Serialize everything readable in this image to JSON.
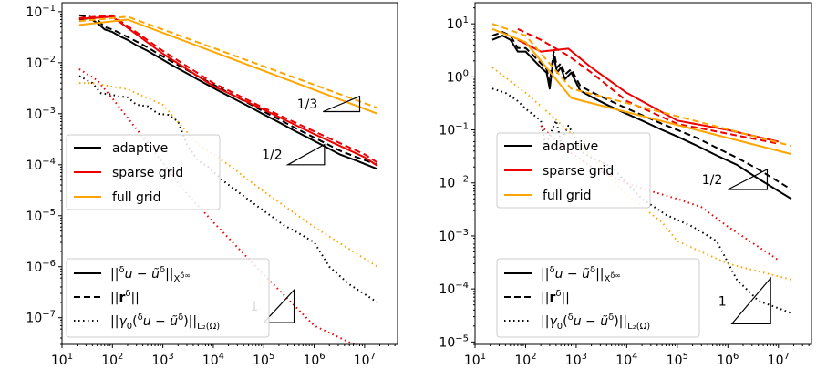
{
  "chart_data": [
    {
      "type": "line",
      "scale": {
        "x": "log",
        "y": "log"
      },
      "xlim": [
        10,
        45000000
      ],
      "ylim": [
        3e-08,
        0.15
      ],
      "x_ticks": [
        {
          "v": 10,
          "b": "10",
          "e": "1"
        },
        {
          "v": 100,
          "b": "10",
          "e": "2"
        },
        {
          "v": 1000,
          "b": "10",
          "e": "3"
        },
        {
          "v": 10000,
          "b": "10",
          "e": "4"
        },
        {
          "v": 100000,
          "b": "10",
          "e": "5"
        },
        {
          "v": 1000000,
          "b": "10",
          "e": "6"
        },
        {
          "v": 10000000,
          "b": "10",
          "e": "7"
        }
      ],
      "y_ticks": [
        {
          "v": 1e-07,
          "b": "10",
          "e": "−7"
        },
        {
          "v": 1e-06,
          "b": "10",
          "e": "−6"
        },
        {
          "v": 1e-05,
          "b": "10",
          "e": "−5"
        },
        {
          "v": 0.0001,
          "b": "10",
          "e": "−4"
        },
        {
          "v": 0.001,
          "b": "10",
          "e": "−3"
        },
        {
          "v": 0.01,
          "b": "10",
          "e": "−2"
        },
        {
          "v": 0.1,
          "b": "10",
          "e": "−1"
        }
      ],
      "series": [
        {
          "name": "adaptive",
          "style": "solid",
          "color": "#000000",
          "x": [
            22,
            35,
            50,
            70,
            100,
            140,
            200,
            300,
            500,
            800,
            1500,
            3000,
            6000,
            12000,
            25000,
            50000,
            100000,
            200000,
            400000,
            800000,
            1600000,
            3200000,
            7000000,
            18000000
          ],
          "y": [
            0.07,
            0.075,
            0.06,
            0.045,
            0.04,
            0.033,
            0.028,
            0.022,
            0.017,
            0.013,
            0.009,
            0.0062,
            0.0042,
            0.0029,
            0.002,
            0.0014,
            0.00097,
            0.00068,
            0.00047,
            0.00033,
            0.00023,
            0.00016,
            0.00012,
            8.2e-05
          ]
        },
        {
          "name": "",
          "style": "dashed",
          "color": "#000000",
          "x": [
            22,
            35,
            50,
            70,
            100,
            140,
            200,
            300,
            500,
            800,
            1500,
            3000,
            6000,
            12000,
            25000,
            50000,
            100000,
            200000,
            400000,
            800000,
            1600000,
            3200000,
            7000000,
            18000000
          ],
          "y": [
            0.085,
            0.08,
            0.07,
            0.05,
            0.045,
            0.038,
            0.032,
            0.026,
            0.02,
            0.015,
            0.0105,
            0.0072,
            0.0049,
            0.0034,
            0.0023,
            0.0016,
            0.0011,
            0.00078,
            0.00054,
            0.00038,
            0.00027,
            0.00019,
            0.00014,
            0.0001
          ]
        },
        {
          "name": "",
          "style": "dotted",
          "color": "#000000",
          "x": [
            22,
            40,
            60,
            90,
            130,
            200,
            300,
            500,
            800,
            1300,
            2000,
            3000,
            5000,
            8000,
            15000,
            30000,
            60000,
            120000,
            250000,
            500000,
            1000000,
            2000000,
            5000000,
            18000000
          ],
          "y": [
            0.0055,
            0.004,
            0.0025,
            0.0024,
            0.0022,
            0.0021,
            0.0015,
            0.0014,
            0.001,
            0.00095,
            0.0007,
            0.00025,
            0.00012,
            9e-05,
            5e-05,
            3e-05,
            1.8e-05,
            1.1e-05,
            6.5e-06,
            4.5e-06,
            3e-06,
            1e-06,
            4.5e-07,
            2e-07
          ]
        },
        {
          "name": "sparse grid",
          "style": "solid",
          "color": "#ee0000",
          "x": [
            22,
            100,
            1000,
            10000,
            100000,
            1000000,
            10000000,
            18000000
          ],
          "y": [
            0.072,
            0.08,
            0.015,
            0.0035,
            0.0012,
            0.0004,
            0.00014,
            9.5e-05
          ]
        },
        {
          "name": "",
          "style": "dashed",
          "color": "#ee0000",
          "x": [
            22,
            100,
            1000,
            10000,
            100000,
            1000000,
            10000000,
            18000000
          ],
          "y": [
            0.075,
            0.085,
            0.017,
            0.004,
            0.0013,
            0.00045,
            0.00016,
            0.00011
          ]
        },
        {
          "name": "",
          "style": "dotted",
          "color": "#ee0000",
          "x": [
            22,
            50,
            100,
            300,
            1000,
            3000,
            10000,
            100000,
            1000000,
            9000000
          ],
          "y": [
            0.0075,
            0.0045,
            0.002,
            0.0005,
            0.00011,
            2.7e-05,
            7.5e-06,
            7e-07,
            7e-08,
            2.5e-08
          ]
        },
        {
          "name": "full grid",
          "style": "solid",
          "color": "#ffa500",
          "x": [
            22,
            200,
            18000000
          ],
          "y": [
            0.055,
            0.07,
            0.001
          ]
        },
        {
          "name": "",
          "style": "dashed",
          "color": "#ffa500",
          "x": [
            22,
            200,
            18000000
          ],
          "y": [
            0.065,
            0.08,
            0.0013
          ]
        },
        {
          "name": "",
          "style": "dotted",
          "color": "#ffa500",
          "x": [
            22,
            40,
            200,
            1000,
            5000,
            20000,
            100000,
            1000000,
            18000000
          ],
          "y": [
            0.004,
            0.004,
            0.003,
            0.0015,
            0.00025,
            0.0001,
            3e-05,
            6e-06,
            1e-06
          ]
        }
      ],
      "legend_methods": {
        "placement": "left",
        "entries": [
          {
            "label": "adaptive",
            "color": "#000000"
          },
          {
            "label": "sparse grid",
            "color": "#ee0000"
          },
          {
            "label": "full grid",
            "color": "#ffa500"
          }
        ]
      },
      "legend_styles": {
        "placement": "lower-left"
      },
      "slopes": [
        {
          "label": "1/3",
          "x": [
            1500000,
            8000000
          ],
          "y_bottom": 0.0011,
          "y_top": 0.0022
        },
        {
          "label": "1/2",
          "x": [
            300000,
            1600000
          ],
          "y_bottom": 0.0001,
          "y_top": 0.00025
        },
        {
          "label": "1",
          "x": [
            100000,
            400000
          ],
          "y_bottom": 8e-08,
          "y_top": 3.5e-07
        }
      ]
    },
    {
      "type": "line",
      "scale": {
        "x": "log",
        "y": "log"
      },
      "xlim": [
        10,
        45000000
      ],
      "ylim": [
        9e-06,
        25
      ],
      "x_ticks": [
        {
          "v": 10,
          "b": "10",
          "e": "1"
        },
        {
          "v": 100,
          "b": "10",
          "e": "2"
        },
        {
          "v": 1000,
          "b": "10",
          "e": "3"
        },
        {
          "v": 10000,
          "b": "10",
          "e": "4"
        },
        {
          "v": 100000,
          "b": "10",
          "e": "5"
        },
        {
          "v": 1000000,
          "b": "10",
          "e": "6"
        },
        {
          "v": 10000000,
          "b": "10",
          "e": "7"
        }
      ],
      "y_ticks": [
        {
          "v": 1e-05,
          "b": "10",
          "e": "−5"
        },
        {
          "v": 0.0001,
          "b": "10",
          "e": "−4"
        },
        {
          "v": 0.001,
          "b": "10",
          "e": "−3"
        },
        {
          "v": 0.01,
          "b": "10",
          "e": "−2"
        },
        {
          "v": 0.1,
          "b": "10",
          "e": "−1"
        },
        {
          "v": 1,
          "b": "10",
          "e": "0"
        },
        {
          "v": 10,
          "b": "10",
          "e": "1"
        }
      ],
      "series": [
        {
          "name": "adaptive",
          "style": "solid",
          "color": "#000000",
          "x": [
            22,
            35,
            50,
            70,
            100,
            150,
            200,
            260,
            300,
            360,
            420,
            500,
            600,
            800,
            1200,
            2000,
            4000,
            8000,
            20000,
            50000,
            100000,
            250000,
            600000,
            1500000,
            4000000,
            18000000
          ],
          "y": [
            5,
            6,
            5,
            3,
            3,
            2,
            1.5,
            1.2,
            0.6,
            2.5,
            1.2,
            1.5,
            0.9,
            1.2,
            0.55,
            0.42,
            0.3,
            0.22,
            0.15,
            0.1,
            0.075,
            0.05,
            0.033,
            0.022,
            0.012,
            0.005
          ]
        },
        {
          "name": "",
          "style": "dashed",
          "color": "#000000",
          "x": [
            22,
            35,
            50,
            70,
            100,
            150,
            200,
            260,
            300,
            360,
            420,
            500,
            600,
            800,
            1200,
            2000,
            4000,
            8000,
            20000,
            50000,
            100000,
            250000,
            600000,
            1500000,
            4000000,
            18000000
          ],
          "y": [
            6,
            7,
            6,
            3.5,
            3.5,
            2.4,
            1.8,
            1.4,
            0.8,
            3,
            1.5,
            1.8,
            1.1,
            1.4,
            0.68,
            0.52,
            0.38,
            0.28,
            0.19,
            0.13,
            0.1,
            0.07,
            0.046,
            0.03,
            0.018,
            0.0075
          ]
        },
        {
          "name": "",
          "style": "dotted",
          "color": "#000000",
          "x": [
            22,
            40,
            70,
            100,
            200,
            250,
            300,
            400,
            500,
            700,
            900,
            1200,
            2000,
            5000,
            20000,
            60000,
            200000,
            600000,
            1500000,
            4000000,
            18000000
          ],
          "y": [
            0.6,
            0.5,
            0.35,
            0.25,
            0.15,
            0.05,
            0.08,
            0.15,
            0.06,
            0.12,
            0.08,
            0.04,
            0.03,
            0.02,
            0.005,
            0.0025,
            0.0015,
            0.0008,
            0.00015,
            6e-05,
            3.5e-05
          ]
        },
        {
          "name": "sparse grid",
          "style": "solid",
          "color": "#ee0000",
          "x": [
            70,
            200,
            700,
            2000,
            10000,
            100000,
            1000000,
            10000000
          ],
          "y": [
            5,
            3,
            3.4,
            1.5,
            0.5,
            0.15,
            0.1,
            0.06
          ]
        },
        {
          "name": "",
          "style": "dashed",
          "color": "#ee0000",
          "x": [
            70,
            200,
            700,
            2000,
            10000,
            100000,
            1000000,
            10000000
          ],
          "y": [
            8,
            5,
            2.5,
            1.2,
            0.35,
            0.13,
            0.085,
            0.055
          ]
        },
        {
          "name": "",
          "style": "dotted",
          "color": "#ee0000",
          "x": [
            200,
            500,
            2000,
            10000,
            30000,
            100000,
            300000,
            1000000,
            10000000
          ],
          "y": [
            0.12,
            0.05,
            0.02,
            0.01,
            0.007,
            0.005,
            0.0035,
            0.0015,
            0.00035
          ]
        },
        {
          "name": "full grid",
          "style": "solid",
          "color": "#ffa500",
          "x": [
            22,
            100,
            800,
            18000000
          ],
          "y": [
            8,
            4.5,
            0.4,
            0.035
          ]
        },
        {
          "name": "",
          "style": "dashed",
          "color": "#ffa500",
          "x": [
            22,
            100,
            800,
            18000000
          ],
          "y": [
            10,
            6,
            0.6,
            0.05
          ]
        },
        {
          "name": "",
          "style": "dotted",
          "color": "#ffa500",
          "x": [
            22,
            100,
            300,
            1000,
            3000,
            10000,
            50000,
            100000,
            1000000,
            18000000
          ],
          "y": [
            1.5,
            0.5,
            0.2,
            0.07,
            0.02,
            0.006,
            0.0018,
            0.0008,
            0.0003,
            0.00015
          ]
        }
      ],
      "legend_methods": {
        "placement": "middle-left",
        "entries": [
          {
            "label": "adaptive",
            "color": "#000000"
          },
          {
            "label": "sparse grid",
            "color": "#ee0000"
          },
          {
            "label": "full grid",
            "color": "#ffa500"
          }
        ]
      },
      "legend_styles": {
        "placement": "lower-left"
      },
      "slopes": [
        {
          "label": "1/2",
          "x": [
            1000000,
            6000000
          ],
          "y_bottom": 0.0075,
          "y_top": 0.018
        },
        {
          "label": "1",
          "x": [
            1200000,
            7000000
          ],
          "y_bottom": 2.2e-05,
          "y_top": 0.00016
        }
      ]
    }
  ],
  "legend_styles_text": {
    "solid": {
      "parts": [
        {
          "t": "||",
          "k": "n"
        },
        {
          "t": "δ",
          "k": "sup"
        },
        {
          "t": "u − ũ",
          "k": "i"
        },
        {
          "t": "δ",
          "k": "sup"
        },
        {
          "t": "||",
          "k": "n"
        },
        {
          "t": "X",
          "k": "sub"
        },
        {
          "t": "δ̃∞",
          "k": "subsup"
        }
      ]
    },
    "dashed": {
      "parts": [
        {
          "t": "||",
          "k": "n"
        },
        {
          "t": "r",
          "k": "b"
        },
        {
          "t": "δ",
          "k": "sup"
        },
        {
          "t": "||",
          "k": "n"
        }
      ]
    },
    "dotted": {
      "parts": [
        {
          "t": "||",
          "k": "n"
        },
        {
          "t": "γ",
          "k": "i"
        },
        {
          "t": "0",
          "k": "sub"
        },
        {
          "t": "(",
          "k": "n"
        },
        {
          "t": "δ",
          "k": "sup"
        },
        {
          "t": "u − ũ",
          "k": "i"
        },
        {
          "t": "δ",
          "k": "sup"
        },
        {
          "t": ")||",
          "k": "n"
        },
        {
          "t": "L₂(Ω)",
          "k": "sub"
        }
      ]
    }
  },
  "colors": {
    "adaptive": "#000000",
    "sparse grid": "#ee0000",
    "full grid": "#ffa500"
  }
}
